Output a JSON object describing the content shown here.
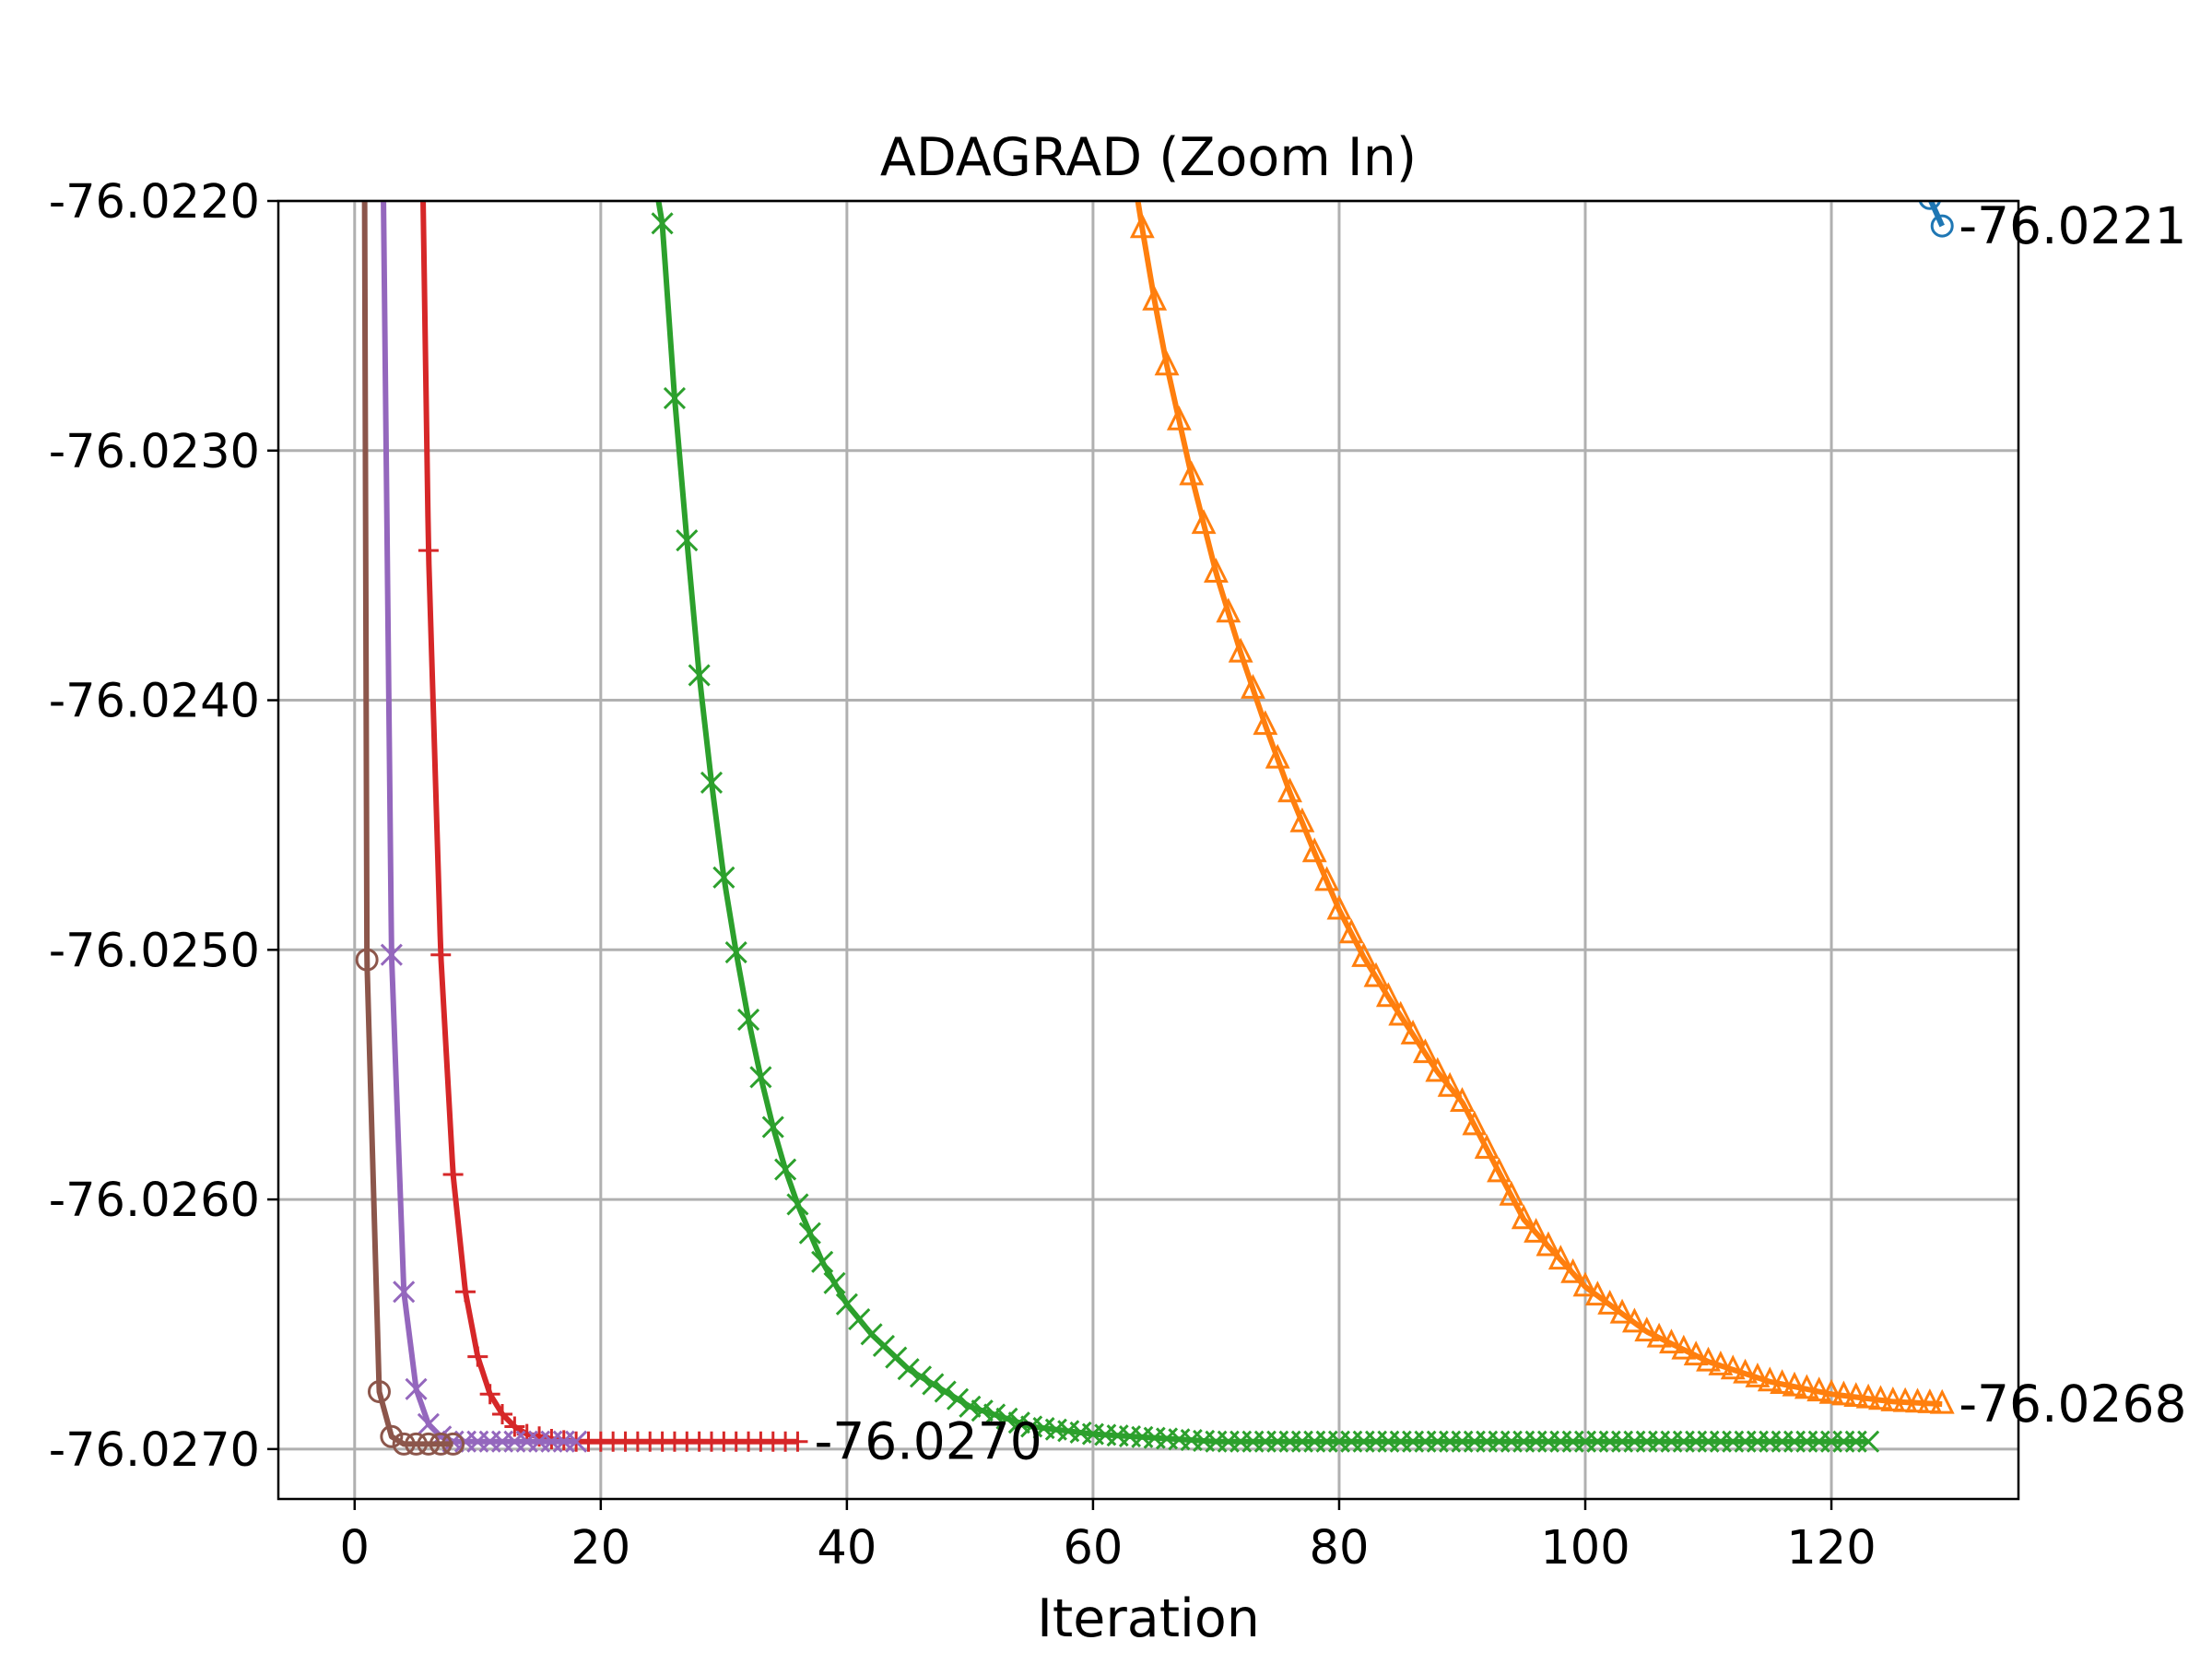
{
  "chart_data": {
    "type": "line",
    "title": "ADAGRAD (Zoom In)",
    "xlabel": "Iteration",
    "ylabel": "",
    "xlim": [
      -6.2,
      135.2
    ],
    "ylim": [
      -76.0272,
      -76.022
    ],
    "xticks": [
      0,
      20,
      40,
      60,
      80,
      100,
      120
    ],
    "xtick_labels": [
      "0",
      "20",
      "40",
      "60",
      "80",
      "100",
      "120"
    ],
    "yticks": [
      -76.022,
      -76.023,
      -76.024,
      -76.025,
      -76.026,
      -76.027
    ],
    "ytick_labels": [
      "-76.0220",
      "-76.0230",
      "-76.0240",
      "-76.0250",
      "-76.0260",
      "-76.0270"
    ],
    "grid": true,
    "legend": "none",
    "series": [
      {
        "color": "#1f77b4",
        "marker": "circle",
        "x": [
          128,
          129
        ],
        "y": [
          -76.02199,
          -76.0221
        ],
        "end_label": "-76.0221"
      },
      {
        "color": "#ff7f0e",
        "marker": "triangle",
        "x": [
          63,
          64,
          65,
          66,
          68,
          70,
          72,
          74,
          76,
          78,
          80,
          82,
          84,
          86,
          88,
          90,
          95,
          100,
          105,
          110,
          115,
          120,
          125,
          129
        ],
        "y": [
          -76.0218,
          -76.02211,
          -76.0224,
          -76.02266,
          -76.0231,
          -76.02349,
          -76.02381,
          -76.0241,
          -76.02437,
          -76.02461,
          -76.02484,
          -76.02503,
          -76.02519,
          -76.02534,
          -76.02549,
          -76.02561,
          -76.02608,
          -76.02635,
          -76.02653,
          -76.02665,
          -76.02673,
          -76.02678,
          -76.02681,
          -76.02682
        ],
        "end_label": "-76.0268"
      },
      {
        "color": "#2ca02c",
        "marker": "x",
        "x": [
          24,
          25,
          26,
          27,
          28,
          29,
          30,
          31,
          32,
          33,
          34,
          35,
          36,
          38,
          40,
          42,
          45,
          50,
          55,
          60,
          70,
          80,
          90,
          100,
          110,
          123
        ],
        "y": [
          -76.0218,
          -76.02209,
          -76.02279,
          -76.02336,
          -76.0239,
          -76.02433,
          -76.02471,
          -76.02501,
          -76.02528,
          -76.02551,
          -76.02571,
          -76.02588,
          -76.02602,
          -76.02625,
          -76.02642,
          -76.02654,
          -76.02668,
          -76.02683,
          -76.02691,
          -76.02694,
          -76.02697,
          -76.02697,
          -76.02697,
          -76.02697,
          -76.02697,
          -76.02697
        ],
        "end_label": ""
      },
      {
        "color": "#d62728",
        "marker": "plus",
        "x": [
          5.5,
          6,
          7,
          8,
          9,
          10,
          11,
          12,
          13,
          14,
          16,
          18,
          20,
          25,
          30,
          36
        ],
        "y": [
          -76.0218,
          -76.0234,
          -76.02502,
          -76.0259,
          -76.02637,
          -76.02663,
          -76.02678,
          -76.02686,
          -76.02691,
          -76.02694,
          -76.02696,
          -76.02697,
          -76.02697,
          -76.02697,
          -76.02697,
          -76.02697
        ],
        "end_label": "-76.0270"
      },
      {
        "color": "#9467bd",
        "marker": "x",
        "x": [
          2.3,
          3,
          4,
          5,
          6,
          7,
          8,
          10,
          12,
          14,
          16,
          18
        ],
        "y": [
          -76.0218,
          -76.02502,
          -76.02637,
          -76.02676,
          -76.0269,
          -76.02695,
          -76.02697,
          -76.02697,
          -76.02697,
          -76.02697,
          -76.02697,
          -76.02697
        ],
        "end_label": ""
      },
      {
        "color": "#8c564b",
        "marker": "circle",
        "x": [
          0.8,
          1,
          2,
          3,
          4,
          5,
          6,
          7,
          8
        ],
        "y": [
          -76.0218,
          -76.02504,
          -76.02677,
          -76.02695,
          -76.02698,
          -76.02698,
          -76.02698,
          -76.02698,
          -76.02698
        ],
        "end_label": ""
      }
    ]
  }
}
